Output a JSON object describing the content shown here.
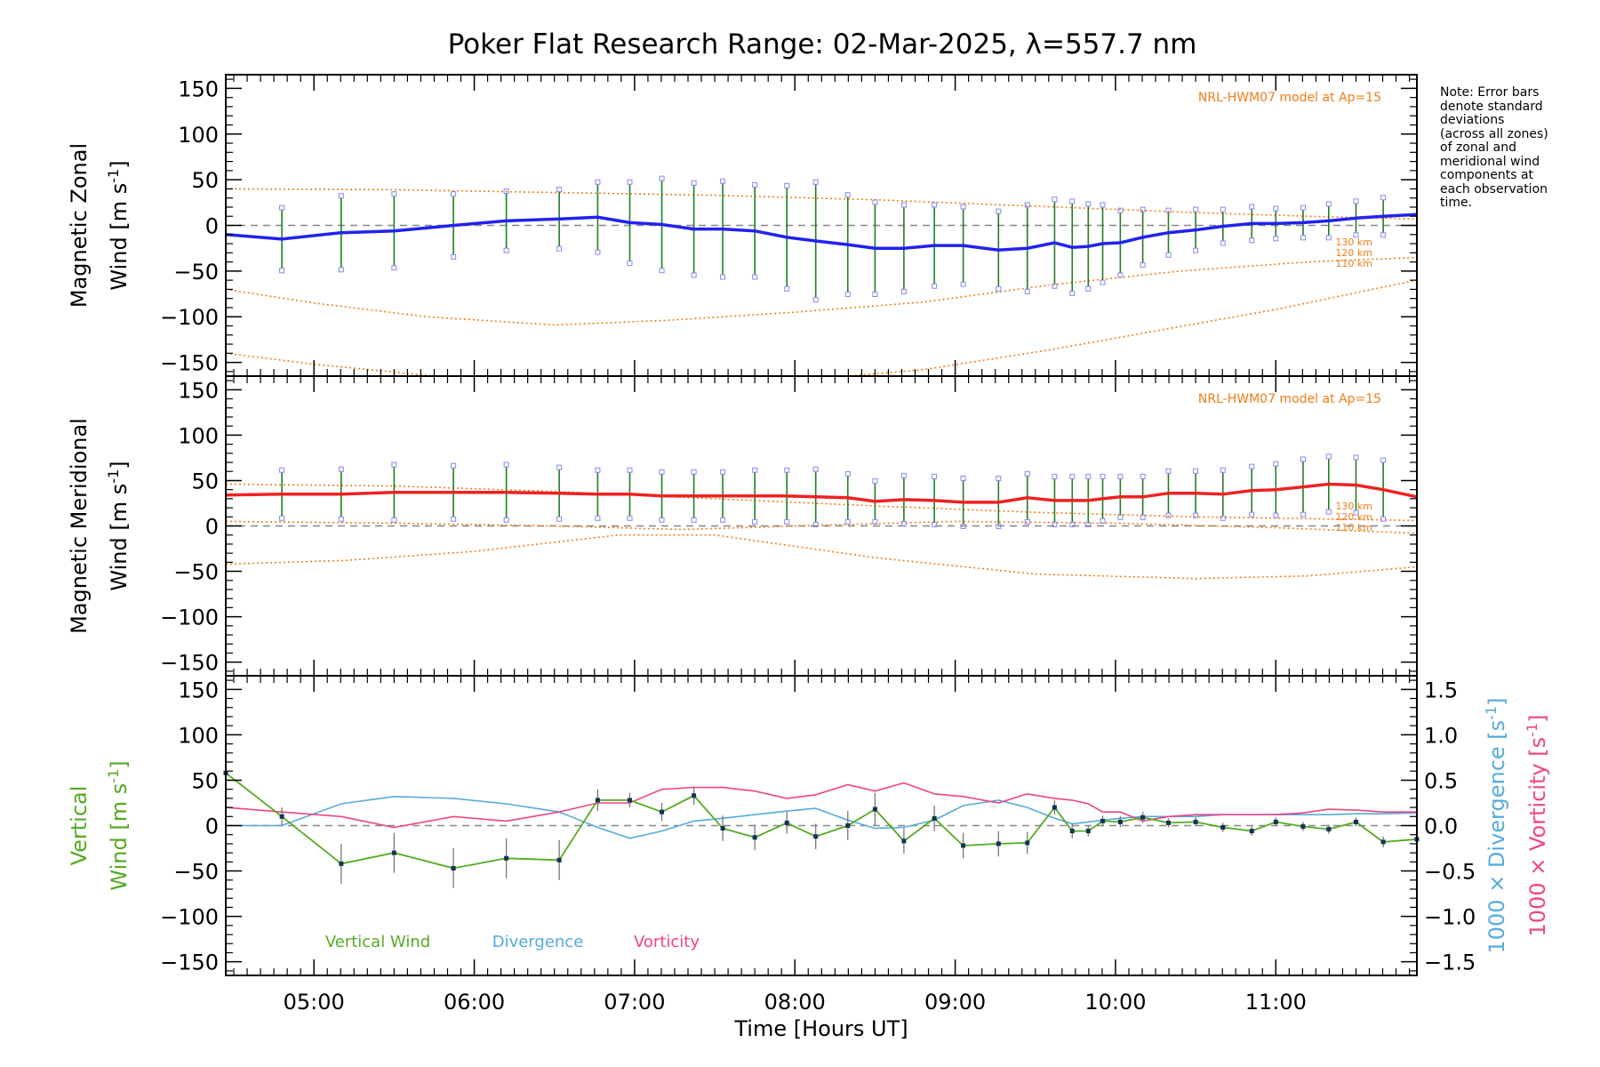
{
  "title": "Poker Flat Research Range: 02-Mar-2025, λ=557.7 nm",
  "note_lines": [
    "Note: Error bars",
    "denote standard",
    "deviations",
    "(across all zones)",
    "of zonal and",
    "meridional wind",
    "components at",
    "each observation",
    "time."
  ],
  "model_label": "NRL-HWM07 model at Ap=15",
  "km_labels": [
    "130 km",
    "120 km",
    "110 km"
  ],
  "colors": {
    "zonal": "#2222ee",
    "meridional": "#ee2222",
    "vertical": "#55aa22",
    "divergence": "#55aadd",
    "vorticity": "#ee4488",
    "model": "#f07d19",
    "errorbar": "#1f7f1f",
    "scatter": "#8888ee"
  },
  "chart_data": {
    "type": "line",
    "xlabel": "Time [Hours UT]",
    "x_ticks": [
      "05:00",
      "06:00",
      "07:00",
      "08:00",
      "09:00",
      "10:00",
      "11:00"
    ],
    "x_tick_values": [
      5,
      6,
      7,
      8,
      9,
      10,
      11
    ],
    "xlim": [
      4.45,
      11.88
    ],
    "y_ticks": [
      "150",
      "100",
      "50",
      "0",
      "−50",
      "−100",
      "−150"
    ],
    "y_tick_values": [
      150,
      100,
      50,
      0,
      -50,
      -100,
      -150
    ],
    "ylim": [
      -165,
      165
    ],
    "panels": [
      {
        "name": "zonal",
        "ylabel_line1": "Magnetic Zonal",
        "ylabel_line2": "Wind [m s",
        "ylabel_sup": "-1",
        "ylabel_end": "]",
        "series": [
          {
            "x": [
              4.45,
              4.8,
              5.17,
              5.5,
              5.87,
              6.2,
              6.53,
              6.77,
              6.97,
              7.17,
              7.37,
              7.55,
              7.75,
              7.95,
              8.13,
              8.33,
              8.5,
              8.68,
              8.87,
              9.05,
              9.27,
              9.45,
              9.62,
              9.73,
              9.83,
              9.92,
              10.03,
              10.17,
              10.33,
              10.5,
              10.67,
              10.85,
              11.0,
              11.17,
              11.33,
              11.5,
              11.67,
              11.88
            ],
            "y": [
              -10,
              -15,
              -8,
              -6,
              0,
              5,
              7,
              9,
              3,
              1,
              -4,
              -4,
              -6,
              -13,
              -17,
              -21,
              -25,
              -25,
              -22,
              -22,
              -27,
              -25,
              -19,
              -24,
              -23,
              -20,
              -19,
              -13,
              -8,
              -5,
              -1,
              2,
              2,
              3,
              5,
              8,
              10,
              12
            ]
          }
        ],
        "errorbars": {
          "x": [
            4.8,
            5.17,
            5.5,
            5.87,
            6.2,
            6.53,
            6.77,
            6.97,
            7.17,
            7.37,
            7.55,
            7.75,
            7.95,
            8.13,
            8.33,
            8.5,
            8.68,
            8.87,
            9.05,
            9.27,
            9.45,
            9.62,
            9.73,
            9.83,
            9.92,
            10.03,
            10.17,
            10.33,
            10.5,
            10.67,
            10.85,
            11.0,
            11.17,
            11.33,
            11.5,
            11.67
          ],
          "y": [
            -15,
            -8,
            -6,
            0,
            5,
            7,
            9,
            3,
            1,
            -4,
            -4,
            -6,
            -13,
            -17,
            -21,
            -25,
            -25,
            -22,
            -22,
            -27,
            -25,
            -19,
            -24,
            -23,
            -20,
            -19,
            -13,
            -8,
            -5,
            -1,
            2,
            2,
            3,
            5,
            8,
            10
          ],
          "err": [
            32,
            38,
            38,
            32,
            30,
            30,
            36,
            42,
            48,
            48,
            50,
            48,
            54,
            62,
            52,
            48,
            45,
            42,
            40,
            40,
            45,
            45,
            48,
            44,
            40,
            33,
            28,
            22,
            20,
            16,
            16,
            14,
            14,
            16,
            16,
            18
          ]
        },
        "model": [
          {
            "label": "130 km",
            "x": [
              4.45,
              5.5,
              6.5,
              7.5,
              8.5,
              9.5,
              10.5,
              11.2,
              11.88
            ],
            "y": [
              40,
              39,
              36,
              33,
              28,
              21,
              14,
              10,
              7
            ]
          },
          {
            "label": "120 km",
            "x": [
              4.45,
              5.0,
              5.7,
              6.5,
              7.2,
              8.0,
              8.8,
              9.6,
              10.4,
              11.2,
              11.88
            ],
            "y": [
              -70,
              -85,
              -100,
              -109,
              -104,
              -95,
              -84,
              -65,
              -50,
              -40,
              -35
            ]
          },
          {
            "label": "110 km",
            "x": [
              4.45,
              5.0,
              5.7,
              6.4,
              7.2,
              8.0,
              8.8,
              9.6,
              10.3,
              11.0,
              11.88
            ],
            "y": [
              -140,
              -152,
              -164,
              -175,
              -176,
              -170,
              -158,
              -136,
              -114,
              -92,
              -60
            ]
          }
        ]
      },
      {
        "name": "meridional",
        "ylabel_line1": "Magnetic Meridional",
        "ylabel_line2": "Wind [m s",
        "ylabel_sup": "-1",
        "ylabel_end": "]",
        "series": [
          {
            "x": [
              4.45,
              4.8,
              5.17,
              5.5,
              5.87,
              6.2,
              6.53,
              6.77,
              6.97,
              7.17,
              7.37,
              7.55,
              7.75,
              7.95,
              8.13,
              8.33,
              8.5,
              8.68,
              8.87,
              9.05,
              9.27,
              9.45,
              9.62,
              9.73,
              9.83,
              9.92,
              10.03,
              10.17,
              10.33,
              10.5,
              10.67,
              10.85,
              11.0,
              11.17,
              11.33,
              11.5,
              11.67,
              11.88
            ],
            "y": [
              34,
              35,
              35,
              37,
              37,
              37,
              36,
              35,
              35,
              33,
              33,
              33,
              33,
              33,
              32,
              31,
              27,
              29,
              28,
              26,
              26,
              31,
              28,
              28,
              28,
              30,
              32,
              32,
              36,
              36,
              35,
              39,
              40,
              43,
              46,
              45,
              40,
              32
            ]
          }
        ],
        "errorbars": {
          "x": [
            4.8,
            5.17,
            5.5,
            5.87,
            6.2,
            6.53,
            6.77,
            6.97,
            7.17,
            7.37,
            7.55,
            7.75,
            7.95,
            8.13,
            8.33,
            8.5,
            8.68,
            8.87,
            9.05,
            9.27,
            9.45,
            9.62,
            9.73,
            9.83,
            9.92,
            10.03,
            10.17,
            10.33,
            10.5,
            10.67,
            10.85,
            11.0,
            11.17,
            11.33,
            11.5,
            11.67
          ],
          "y": [
            35,
            35,
            37,
            37,
            37,
            36,
            35,
            35,
            33,
            33,
            33,
            33,
            33,
            32,
            31,
            27,
            29,
            28,
            26,
            26,
            31,
            28,
            28,
            28,
            30,
            32,
            32,
            36,
            36,
            35,
            39,
            40,
            43,
            46,
            45,
            40
          ],
          "err": [
            24,
            25,
            28,
            27,
            28,
            26,
            24,
            24,
            24,
            24,
            24,
            26,
            26,
            28,
            24,
            20,
            24,
            24,
            24,
            24,
            24,
            24,
            24,
            24,
            22,
            20,
            20,
            22,
            22,
            24,
            24,
            26,
            28,
            28,
            28,
            30
          ]
        },
        "model": [
          {
            "label": "130 km",
            "x": [
              4.45,
              5.5,
              6.5,
              7.5,
              8.5,
              9.5,
              10.5,
              11.2,
              11.88
            ],
            "y": [
              46,
              44,
              38,
              30,
              22,
              15,
              10,
              8,
              6
            ]
          },
          {
            "label": "120 km",
            "x": [
              4.45,
              5.5,
              6.5,
              7.3,
              8.0,
              9.0,
              10.0,
              11.0,
              11.88
            ],
            "y": [
              5,
              3,
              0,
              -4,
              0,
              5,
              3,
              -2,
              -8
            ]
          },
          {
            "label": "110 km",
            "x": [
              4.45,
              5.2,
              6.0,
              6.9,
              7.5,
              8.5,
              9.5,
              10.5,
              11.2,
              11.88
            ],
            "y": [
              -42,
              -38,
              -28,
              -10,
              -10,
              -35,
              -53,
              -58,
              -55,
              -45
            ]
          }
        ]
      },
      {
        "name": "vertical",
        "ylabel_line1": "Vertical",
        "ylabel_line2": "Wind [m s",
        "ylabel_sup": "-1",
        "ylabel_end": "]",
        "right_ticks": [
          "1.5",
          "1.0",
          "0.5",
          "0.0",
          "−0.5",
          "−1.0",
          "−1.5"
        ],
        "right_tick_values": [
          1.5,
          1.0,
          0.5,
          0.0,
          -0.5,
          -1.0,
          -1.5
        ],
        "right_ylim": [
          -1.65,
          1.65
        ],
        "right_label_div": "1000 × Divergence [s",
        "right_label_vort": "1000 × Vorticity [s",
        "right_label_sup": "-1",
        "right_label_end": "]",
        "legend": [
          "Vertical Wind",
          "Divergence",
          "Vorticity"
        ],
        "series": [
          {
            "name": "Vertical Wind",
            "axis": "left",
            "x": [
              4.45,
              4.8,
              5.17,
              5.5,
              5.87,
              6.2,
              6.53,
              6.77,
              6.97,
              7.17,
              7.37,
              7.55,
              7.75,
              7.95,
              8.13,
              8.33,
              8.5,
              8.68,
              8.87,
              9.05,
              9.27,
              9.45,
              9.62,
              9.73,
              9.83,
              9.92,
              10.03,
              10.17,
              10.33,
              10.5,
              10.67,
              10.85,
              11.0,
              11.17,
              11.33,
              11.5,
              11.67,
              11.88
            ],
            "y": [
              58,
              10,
              -42,
              -30,
              -47,
              -36,
              -38,
              28,
              28,
              15,
              33,
              -3,
              -13,
              3,
              -12,
              0,
              18,
              -17,
              8,
              -22,
              -20,
              -19,
              20,
              -6,
              -6,
              5,
              4,
              9,
              3,
              4,
              -2,
              -6,
              4,
              -1,
              -4,
              4,
              -18,
              -15
            ],
            "err": [
              0,
              10,
              22,
              22,
              22,
              22,
              22,
              12,
              8,
              10,
              10,
              14,
              14,
              12,
              14,
              16,
              18,
              14,
              14,
              14,
              14,
              12,
              8,
              8,
              6,
              6,
              6,
              6,
              5,
              5,
              5,
              5,
              5,
              5,
              5,
              5,
              6,
              6
            ]
          },
          {
            "name": "Divergence",
            "axis": "right",
            "x": [
              4.45,
              4.8,
              5.17,
              5.5,
              5.87,
              6.2,
              6.53,
              6.77,
              6.97,
              7.17,
              7.37,
              7.55,
              7.75,
              7.95,
              8.13,
              8.33,
              8.5,
              8.68,
              8.87,
              9.05,
              9.27,
              9.45,
              9.62,
              9.73,
              9.83,
              9.92,
              10.03,
              10.17,
              10.33,
              10.5,
              10.67,
              10.85,
              11.0,
              11.17,
              11.33,
              11.5,
              11.67,
              11.88
            ],
            "y": [
              0.0,
              0.0,
              0.24,
              0.32,
              0.3,
              0.24,
              0.15,
              -0.02,
              -0.14,
              -0.06,
              0.05,
              0.08,
              0.12,
              0.16,
              0.19,
              0.06,
              -0.03,
              -0.02,
              0.06,
              0.22,
              0.28,
              0.2,
              0.08,
              0.02,
              0.04,
              0.06,
              0.08,
              0.1,
              0.1,
              0.1,
              0.12,
              0.12,
              0.12,
              0.12,
              0.12,
              0.13,
              0.13,
              0.14
            ]
          },
          {
            "name": "Vorticity",
            "axis": "right",
            "x": [
              4.45,
              4.8,
              5.17,
              5.5,
              5.87,
              6.2,
              6.53,
              6.77,
              6.97,
              7.17,
              7.37,
              7.55,
              7.75,
              7.95,
              8.13,
              8.33,
              8.5,
              8.68,
              8.87,
              9.05,
              9.27,
              9.45,
              9.62,
              9.73,
              9.83,
              9.92,
              10.03,
              10.17,
              10.33,
              10.5,
              10.67,
              10.85,
              11.0,
              11.17,
              11.33,
              11.5,
              11.67,
              11.88
            ],
            "y": [
              0.2,
              0.15,
              0.1,
              -0.02,
              0.1,
              0.05,
              0.15,
              0.25,
              0.25,
              0.4,
              0.42,
              0.42,
              0.38,
              0.3,
              0.34,
              0.45,
              0.38,
              0.47,
              0.35,
              0.32,
              0.25,
              0.35,
              0.3,
              0.28,
              0.24,
              0.15,
              0.15,
              0.05,
              0.1,
              0.12,
              0.12,
              0.12,
              0.12,
              0.14,
              0.18,
              0.17,
              0.15,
              0.15
            ]
          }
        ]
      }
    ]
  }
}
